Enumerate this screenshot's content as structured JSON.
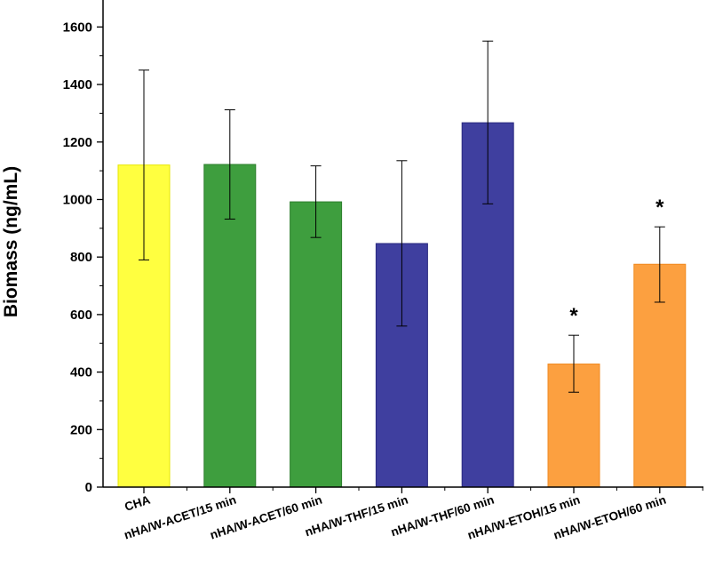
{
  "chart_data": {
    "type": "bar",
    "title": "",
    "xlabel": "",
    "ylabel": "Biomass (ng/mL)",
    "ylim": [
      0,
      1700
    ],
    "yticks": [
      0,
      200,
      400,
      600,
      800,
      1000,
      1200,
      1400,
      1600
    ],
    "grid": false,
    "categories": [
      "CHA",
      "nHA/W-ACET/15 min",
      "nHA/W-ACET/60 min",
      "nHA/W-THF/15 min",
      "nHA/W-THF/60 min",
      "nHA/W-ETOH/15 min",
      "nHA/W-ETOH/60 min"
    ],
    "values": [
      1120,
      1122,
      992,
      847,
      1267,
      428,
      775
    ],
    "error_low": [
      790,
      932,
      868,
      560,
      985,
      330,
      643
    ],
    "error_high": [
      1450,
      1312,
      1117,
      1135,
      1551,
      528,
      905
    ],
    "significance": [
      "",
      "",
      "",
      "",
      "",
      "*",
      "*"
    ],
    "colors": [
      "#ffff40",
      "#3e9e3e",
      "#3e9e3e",
      "#3f3f9f",
      "#3f3f9f",
      "#fca040",
      "#fca040"
    ],
    "edge_colors": [
      "#e6e600",
      "#2d7f2d",
      "#2d7f2d",
      "#2b2b80",
      "#2b2b80",
      "#f08a20",
      "#f08a20"
    ]
  }
}
